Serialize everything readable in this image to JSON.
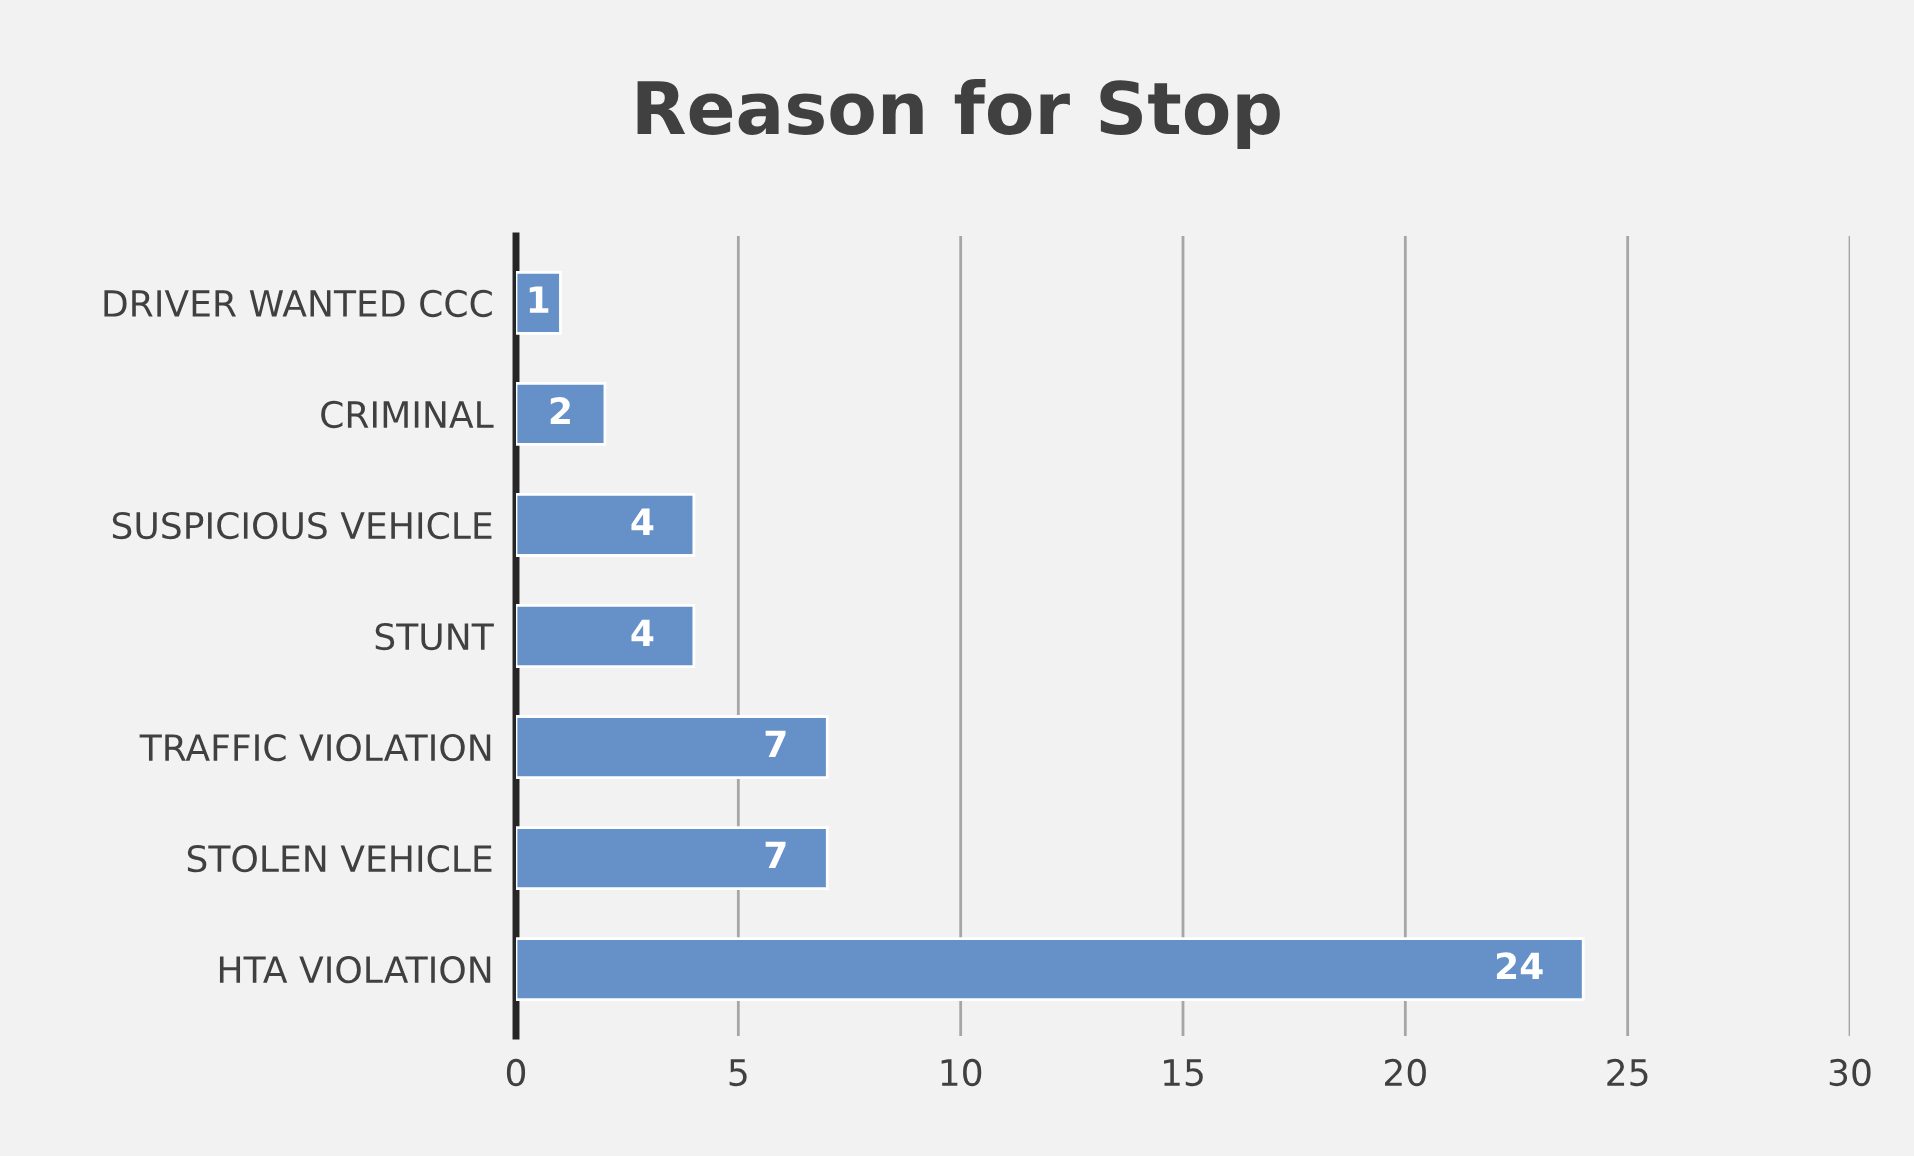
{
  "chart_data": {
    "type": "bar",
    "orientation": "horizontal",
    "title": "Reason for Stop",
    "categories": [
      "DRIVER WANTED CCC",
      "CRIMINAL",
      "SUSPICIOUS VEHICLE",
      "STUNT",
      "TRAFFIC VIOLATION",
      "STOLEN VEHICLE",
      "HTA VIOLATION"
    ],
    "values": [
      1,
      2,
      4,
      4,
      7,
      7,
      24
    ],
    "color": "#6590c8",
    "xlim": [
      0,
      30
    ],
    "xticks": [
      0,
      5,
      10,
      15,
      20,
      25,
      30
    ],
    "grid": "x",
    "data_labels": true
  }
}
